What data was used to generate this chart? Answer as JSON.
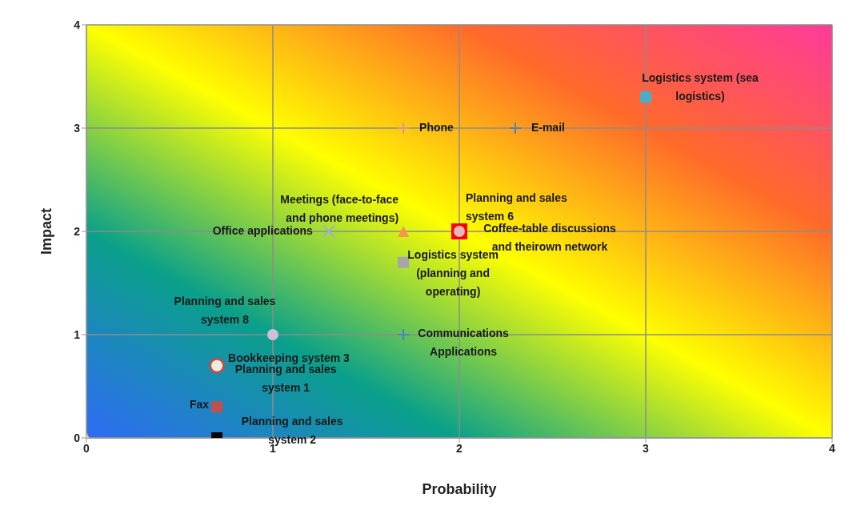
{
  "chart_data": {
    "type": "scatter",
    "xlabel": "Probability",
    "ylabel": "Impact",
    "xlim": [
      0,
      4
    ],
    "xticks": [
      0,
      1,
      2,
      3,
      4
    ],
    "ylim": [
      0,
      4
    ],
    "yticks": [
      0,
      1,
      2,
      3,
      4
    ],
    "grid": true,
    "series": [
      {
        "name": "Logistics system (sea logistics)",
        "color": "#4bacc6",
        "marker": "square",
        "x": [
          3.0
        ],
        "values": [
          3.3
        ]
      },
      {
        "name": "Phone",
        "color": "#d99694",
        "marker": "cross",
        "x": [
          1.7
        ],
        "values": [
          3
        ]
      },
      {
        "name": "E-mail",
        "color": "#4f81bd",
        "marker": "cross",
        "x": [
          2.3
        ],
        "values": [
          3
        ]
      },
      {
        "name": "Meetings (face-to-face and phone meetings)",
        "color": "#f79646",
        "marker": "triangle",
        "x": [
          1.7
        ],
        "values": [
          2
        ]
      },
      {
        "name": "Coffee-table discussions and theirown network",
        "color": "#ff0000",
        "marker": "square",
        "x": [
          2.0
        ],
        "values": [
          2
        ]
      },
      {
        "name": "Planning and sales system 6",
        "color": "#e6b9b8",
        "marker": "circle",
        "x": [
          2.0
        ],
        "values": [
          2
        ]
      },
      {
        "name": "Office applications",
        "color": "#95b3d7",
        "marker": "x",
        "x": [
          1.3
        ],
        "values": [
          2
        ]
      },
      {
        "name": "Logistics system (planning and operating)",
        "color": "#a6a6a6",
        "marker": "square",
        "x": [
          1.7
        ],
        "values": [
          1.7
        ]
      },
      {
        "name": "Communications Applications",
        "color": "#4f81bd",
        "marker": "cross",
        "x": [
          1.7
        ],
        "values": [
          1
        ]
      },
      {
        "name": "Planning and sales system 8",
        "color": "#ccc0da",
        "marker": "circle",
        "x": [
          1.0
        ],
        "values": [
          1
        ]
      },
      {
        "name": "Planning and sales system 1",
        "color": "#c0504d",
        "marker": "circle",
        "x": [
          0.7
        ],
        "values": [
          0.7
        ]
      },
      {
        "name": "Bookkeeping system 3",
        "color": "#eeece1",
        "marker": "circle",
        "x": [
          0.7
        ],
        "values": [
          0.7
        ]
      },
      {
        "name": "Fax",
        "color": "#c0504d",
        "marker": "square",
        "x": [
          0.7
        ],
        "values": [
          0.3
        ]
      },
      {
        "name": "Planning and sales system 2",
        "color": "#000000",
        "marker": "square",
        "x": [
          0.7
        ],
        "values": [
          0
        ]
      },
      {
        "color": "#fac090",
        "marker": "triangle",
        "x": [
          0
        ],
        "values": [
          0
        ]
      }
    ]
  }
}
